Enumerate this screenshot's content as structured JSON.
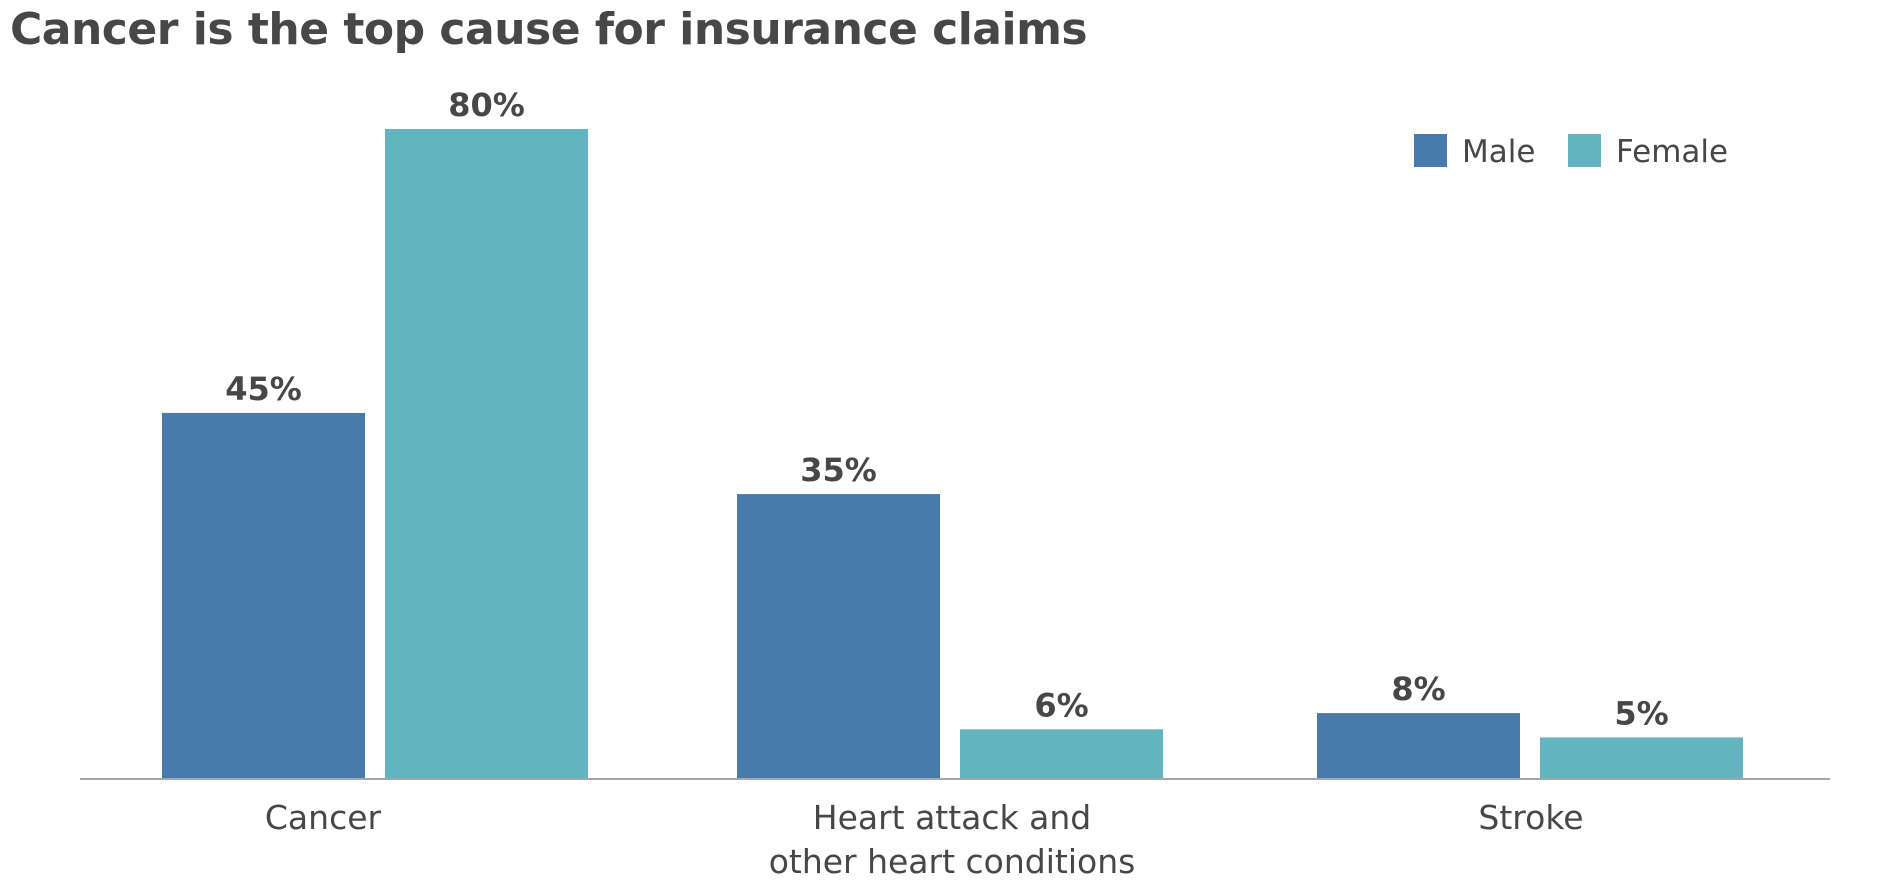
{
  "chart_data": {
    "type": "bar",
    "title": "Cancer is the top cause for insurance claims",
    "categories": [
      [
        "Cancer"
      ],
      [
        "Heart attack and",
        "other heart conditions"
      ],
      [
        "Stroke"
      ]
    ],
    "series": [
      {
        "name": "Male",
        "values": [
          45,
          35,
          8
        ],
        "labels": [
          "45%",
          "35%",
          "8%"
        ],
        "color": "#487bab"
      },
      {
        "name": "Female",
        "values": [
          80,
          6,
          5
        ],
        "labels": [
          "80%",
          "6%",
          "5%"
        ],
        "color": "#62b4c0"
      }
    ],
    "ylim": [
      0,
      80
    ],
    "grid": false,
    "legend_position": "top-right",
    "axis_color": "#a6a6a6"
  }
}
